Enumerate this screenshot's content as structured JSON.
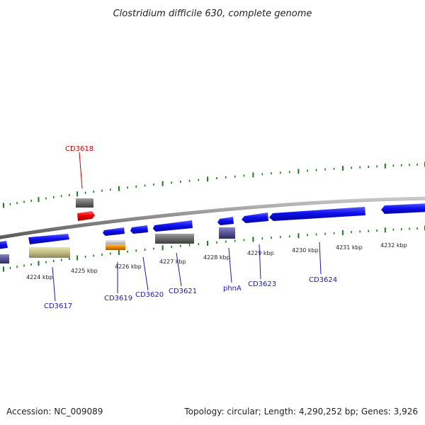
{
  "title": "Clostridium difficile 630, complete genome",
  "footer": {
    "accession": "Accession: NC_009089",
    "topology": "Topology: circular; Length: 4,290,252 bp; Genes: 3,926"
  },
  "colors": {
    "backbone": "#8c8c8c",
    "tick": "#1f7a1f",
    "label_blue": "#1a1aa8",
    "label_red": "#cc0000"
  },
  "kbp_labels": [
    "4224 kbp",
    "4225 kbp",
    "4226 kbp",
    "4227 kbp",
    "4228 kbp",
    "4229 kbp",
    "4230 kbp",
    "4231 kbp",
    "4232 kbp"
  ],
  "gene_labels": [
    {
      "text": "CD3617",
      "color": "#1a1aa8"
    },
    {
      "text": "CD3618",
      "color": "#cc0000"
    },
    {
      "text": "CD3619",
      "color": "#1a1aa8"
    },
    {
      "text": "CD3620",
      "color": "#1a1aa8"
    },
    {
      "text": "CD3621",
      "color": "#1a1aa8"
    },
    {
      "text": "phnA",
      "color": "#1a1aa8"
    },
    {
      "text": "CD3623",
      "color": "#1a1aa8"
    },
    {
      "text": "CD3624",
      "color": "#1a1aa8"
    }
  ]
}
